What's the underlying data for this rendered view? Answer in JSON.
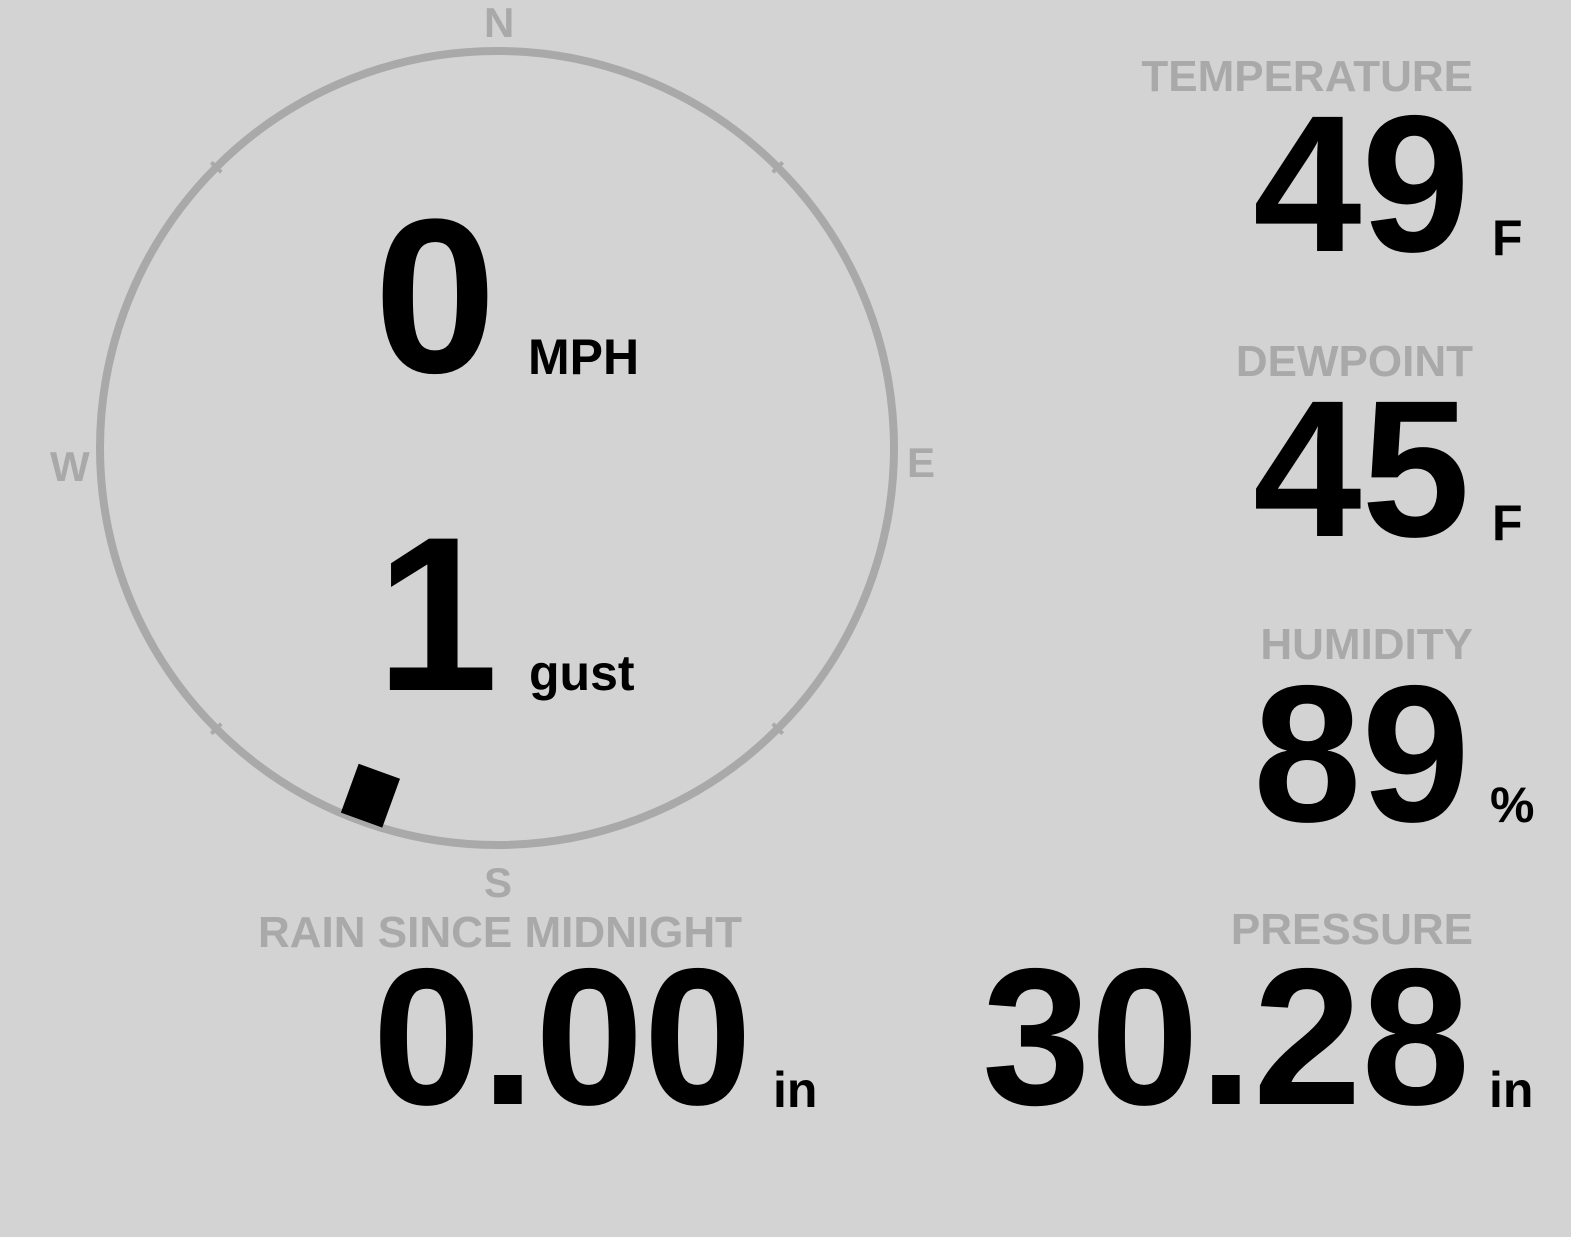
{
  "colors": {
    "background": "#d3d3d3",
    "label": "#a9a9a9",
    "value": "#000000",
    "ring": "#a9a9a9"
  },
  "wind": {
    "cardinals": {
      "n": "N",
      "e": "E",
      "s": "S",
      "w": "W"
    },
    "speed": "0",
    "speed_unit": "MPH",
    "gust": "1",
    "gust_unit": "gust",
    "direction_degrees": 200
  },
  "temperature": {
    "label": "TEMPERATURE",
    "value": "49",
    "unit": "F"
  },
  "dewpoint": {
    "label": "DEWPOINT",
    "value": "45",
    "unit": "F"
  },
  "humidity": {
    "label": "HUMIDITY",
    "value": "89",
    "unit": "%"
  },
  "pressure": {
    "label": "PRESSURE",
    "value": "30.28",
    "unit": "in"
  },
  "rain": {
    "label": "RAIN SINCE MIDNIGHT",
    "value": "0.00",
    "unit": "in"
  }
}
